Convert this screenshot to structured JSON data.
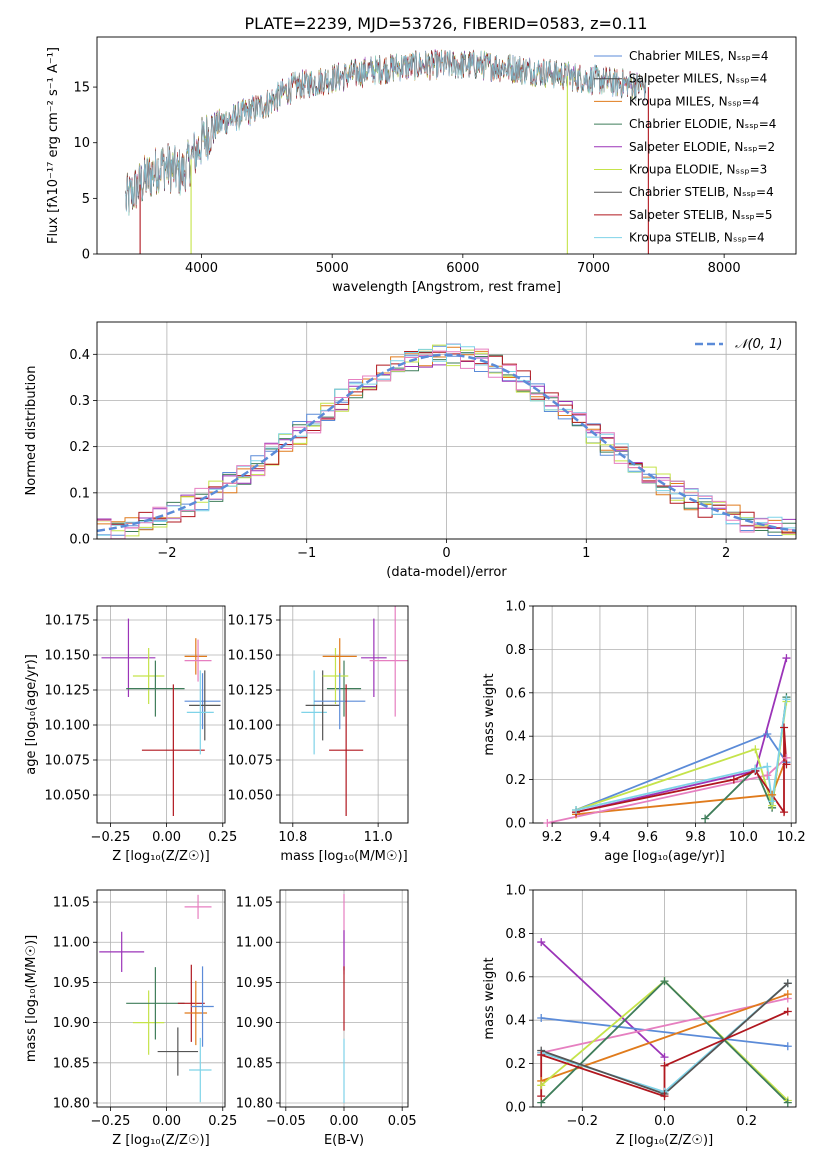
{
  "title": "PLATE=2239, MJD=53726, FIBERID=0583, z=0.11",
  "colors": {
    "Chabrier MILES": "#5b8bd8",
    "Salpeter MILES": "#4a4a4a",
    "Kroupa MILES": "#e07b1c",
    "Chabrier ELODIE": "#3f7d5a",
    "Salpeter ELODIE": "#9b34b8",
    "Kroupa ELODIE": "#c5e34a",
    "Chabrier STELIB": "#555555",
    "Salpeter STELIB": "#b0171f",
    "Kroupa STELIB": "#7fd3e8",
    "extra_pink": "#e67fc0",
    "gaussian": "#5b8bd8"
  },
  "chart_data": [
    {
      "type": "line",
      "panel": "spectrum",
      "xlabel": "wavelength [Angstrom, rest frame]",
      "ylabel": "Flux [fλ10⁻¹⁷ erg cm⁻² s⁻¹ A⁻¹]",
      "xlim": [
        3200,
        8550
      ],
      "ylim": [
        0,
        19.5
      ],
      "xticks": [
        "4000",
        "5000",
        "6000",
        "7000",
        "8000"
      ],
      "yticks": [
        "0",
        "5",
        "10",
        "15"
      ],
      "grid": false,
      "legend_position": "upper-right",
      "series": [
        {
          "name": "Chabrier MILES, Nₛₛₚ=4"
        },
        {
          "name": "Salpeter MILES, Nₛₛₚ=4"
        },
        {
          "name": "Kroupa MILES, Nₛₛₚ=4"
        },
        {
          "name": "Chabrier ELODIE, Nₛₛₚ=4"
        },
        {
          "name": "Salpeter ELODIE, Nₛₛₚ=2"
        },
        {
          "name": "Kroupa ELODIE, Nₛₛₚ=3"
        },
        {
          "name": "Chabrier STELIB, Nₛₛₚ=4"
        },
        {
          "name": "Salpeter STELIB, Nₛₛₚ=5"
        },
        {
          "name": "Kroupa STELIB, Nₛₛₚ=4"
        }
      ],
      "continuum": {
        "x": [
          3420,
          3550,
          3700,
          3850,
          4000,
          4100,
          4300,
          4500,
          4700,
          4900,
          5100,
          5300,
          5500,
          5700,
          5900,
          6100,
          6300,
          6500,
          6700,
          6900,
          7100,
          7300,
          7400
        ],
        "y": [
          4.8,
          6.5,
          8.0,
          7.2,
          10.0,
          11.5,
          12.5,
          13.5,
          15.0,
          15.5,
          16.0,
          16.5,
          16.8,
          17.0,
          17.0,
          17.0,
          16.8,
          16.5,
          16.2,
          15.8,
          15.5,
          15.2,
          15.0
        ]
      },
      "noise_amplitude": 1.2,
      "drops_to_zero": [
        3530,
        3920,
        6800,
        7420
      ]
    },
    {
      "type": "bar",
      "panel": "residual_histogram",
      "xlabel": "(data-model)/error",
      "ylabel": "Normed distribution",
      "xlim": [
        -2.5,
        2.5
      ],
      "ylim": [
        0,
        0.47
      ],
      "xticks": [
        "−2",
        "−1",
        "0",
        "1",
        "2"
      ],
      "yticks": [
        "0.0",
        "0.1",
        "0.2",
        "0.3",
        "0.4"
      ],
      "grid": true,
      "legend_position": "upper-right",
      "legend": [
        "𝒩(0, 1)"
      ],
      "bin_width": 0.1,
      "histogram_scatter": 0.025
    },
    {
      "type": "scatter",
      "panel": "age_vs_Z",
      "xlabel": "Z [log₁₀(Z/Z☉)]",
      "ylabel": "age  [log₁₀(age/yr)]",
      "xlim": [
        -0.31,
        0.26
      ],
      "ylim": [
        10.03,
        10.185
      ],
      "xticks": [
        "−0.25",
        "0.00",
        "0.25"
      ],
      "yticks": [
        "10.050",
        "10.075",
        "10.100",
        "10.125",
        "10.150",
        "10.175"
      ],
      "grid": true,
      "points": [
        {
          "series": "Salpeter ELODIE",
          "x": -0.17,
          "xerr": 0.12,
          "y": 10.148,
          "yerr": 0.028
        },
        {
          "series": "Kroupa ELODIE",
          "x": -0.08,
          "xerr": 0.07,
          "y": 10.135,
          "yerr": 0.02
        },
        {
          "series": "Chabrier ELODIE",
          "x": -0.05,
          "xerr": 0.13,
          "y": 10.126,
          "yerr": 0.02
        },
        {
          "series": "Salpeter STELIB",
          "x": 0.03,
          "xerr": 0.14,
          "y": 10.082,
          "yerr": 0.047
        },
        {
          "series": "Kroupa MILES",
          "x": 0.13,
          "xerr": 0.05,
          "y": 10.149,
          "yerr": 0.013
        },
        {
          "series": "extra_pink",
          "x": 0.14,
          "xerr": 0.06,
          "y": 10.146,
          "yerr": 0.015
        },
        {
          "series": "Chabrier MILES",
          "x": 0.16,
          "xerr": 0.08,
          "y": 10.117,
          "yerr": 0.02
        },
        {
          "series": "Chabrier STELIB",
          "x": 0.17,
          "xerr": 0.07,
          "y": 10.114,
          "yerr": 0.025
        },
        {
          "series": "Kroupa STELIB",
          "x": 0.15,
          "xerr": 0.06,
          "y": 10.109,
          "yerr": 0.03
        }
      ]
    },
    {
      "type": "scatter",
      "panel": "age_vs_mass",
      "xlabel": "mass [log₁₀(M/M☉)]",
      "ylabel": "",
      "xlim": [
        10.77,
        11.07
      ],
      "ylim": [
        10.03,
        10.185
      ],
      "xticks": [
        "10.8",
        "11.0"
      ],
      "yticks": [
        "10.050",
        "10.075",
        "10.100",
        "10.125",
        "10.150",
        "10.175"
      ],
      "grid": true,
      "points": [
        {
          "series": "Kroupa STELIB",
          "x": 10.85,
          "xerr": 0.03,
          "y": 10.109,
          "yerr": 0.03
        },
        {
          "series": "Chabrier STELIB",
          "x": 10.87,
          "xerr": 0.04,
          "y": 10.114,
          "yerr": 0.025
        },
        {
          "series": "Chabrier ELODIE",
          "x": 10.92,
          "xerr": 0.04,
          "y": 10.126,
          "yerr": 0.02
        },
        {
          "series": "Kroupa ELODIE",
          "x": 10.9,
          "xerr": 0.03,
          "y": 10.135,
          "yerr": 0.02
        },
        {
          "series": "Kroupa MILES",
          "x": 10.91,
          "xerr": 0.04,
          "y": 10.149,
          "yerr": 0.013
        },
        {
          "series": "Chabrier MILES",
          "x": 10.91,
          "xerr": 0.06,
          "y": 10.117,
          "yerr": 0.02
        },
        {
          "series": "Salpeter STELIB",
          "x": 10.925,
          "xerr": 0.04,
          "y": 10.082,
          "yerr": 0.047
        },
        {
          "series": "Salpeter ELODIE",
          "x": 10.99,
          "xerr": 0.03,
          "y": 10.148,
          "yerr": 0.028
        },
        {
          "series": "extra_pink",
          "x": 11.04,
          "xerr": 0.06,
          "y": 10.146,
          "yerr": 0.04
        }
      ]
    },
    {
      "type": "line",
      "panel": "mass_weight_vs_age",
      "xlabel": "age  [log₁₀(age/yr)]",
      "ylabel": "mass weight",
      "xlim": [
        9.12,
        10.22
      ],
      "ylim": [
        0,
        1
      ],
      "xticks": [
        "9.2",
        "9.4",
        "9.6",
        "9.8",
        "10.0",
        "10.2"
      ],
      "yticks": [
        "0.0",
        "0.2",
        "0.4",
        "0.6",
        "0.8",
        "1.0"
      ],
      "grid": true,
      "series": [
        {
          "series": "Chabrier MILES",
          "x": [
            9.3,
            10.1,
            10.18
          ],
          "y": [
            0.06,
            0.41,
            0.28
          ]
        },
        {
          "series": "Kroupa MILES",
          "x": [
            9.3,
            10.12,
            10.18
          ],
          "y": [
            0.04,
            0.13,
            0.3
          ]
        },
        {
          "series": "extra_pink",
          "x": [
            9.18,
            10.1,
            10.18
          ],
          "y": [
            0.0,
            0.22,
            0.3
          ]
        },
        {
          "series": "Chabrier ELODIE",
          "x": [
            9.84,
            10.05,
            10.12,
            10.18
          ],
          "y": [
            0.02,
            0.25,
            0.07,
            0.58
          ]
        },
        {
          "series": "Salpeter ELODIE",
          "x": [
            9.3,
            10.05,
            10.18
          ],
          "y": [
            0.05,
            0.24,
            0.76
          ]
        },
        {
          "series": "Kroupa ELODIE",
          "x": [
            9.3,
            10.05,
            10.12,
            10.18
          ],
          "y": [
            0.06,
            0.34,
            0.08,
            0.56
          ]
        },
        {
          "series": "Salpeter STELIB",
          "x": [
            9.3,
            9.96,
            10.05,
            10.17,
            10.17,
            10.18
          ],
          "y": [
            0.05,
            0.2,
            0.24,
            0.05,
            0.44,
            0.27
          ]
        },
        {
          "series": "Kroupa STELIB",
          "x": [
            9.3,
            10.05,
            10.1,
            10.12,
            10.18
          ],
          "y": [
            0.06,
            0.25,
            0.26,
            0.1,
            0.57
          ]
        }
      ]
    },
    {
      "type": "scatter",
      "panel": "mass_vs_Z",
      "xlabel": "Z [log₁₀(Z/Z☉)]",
      "ylabel": "mass [log₁₀(M/M☉)]",
      "xlim": [
        -0.31,
        0.26
      ],
      "ylim": [
        10.795,
        11.065
      ],
      "xticks": [
        "−0.25",
        "0.00",
        "0.25"
      ],
      "yticks": [
        "10.80",
        "10.85",
        "10.90",
        "10.95",
        "11.00",
        "11.05"
      ],
      "grid": true,
      "points": [
        {
          "series": "Salpeter ELODIE",
          "x": -0.2,
          "xerr": 0.1,
          "y": 10.988,
          "yerr": 0.025
        },
        {
          "series": "Kroupa ELODIE",
          "x": -0.08,
          "xerr": 0.07,
          "y": 10.9,
          "yerr": 0.04
        },
        {
          "series": "Chabrier ELODIE",
          "x": -0.05,
          "xerr": 0.13,
          "y": 10.924,
          "yerr": 0.045
        },
        {
          "series": "Chabrier STELIB",
          "x": 0.05,
          "xerr": 0.09,
          "y": 10.864,
          "yerr": 0.03
        },
        {
          "series": "Salpeter STELIB",
          "x": 0.11,
          "xerr": 0.06,
          "y": 10.924,
          "yerr": 0.048
        },
        {
          "series": "Kroupa MILES",
          "x": 0.13,
          "xerr": 0.05,
          "y": 10.912,
          "yerr": 0.04
        },
        {
          "series": "extra_pink",
          "x": 0.14,
          "xerr": 0.06,
          "y": 11.044,
          "yerr": 0.015
        },
        {
          "series": "Kroupa STELIB",
          "x": 0.15,
          "xerr": 0.05,
          "y": 10.841,
          "yerr": 0.04
        },
        {
          "series": "Chabrier MILES",
          "x": 0.16,
          "xerr": 0.05,
          "y": 10.92,
          "yerr": 0.05
        }
      ]
    },
    {
      "type": "scatter",
      "panel": "mass_vs_EBV",
      "xlabel": "E(B-V)",
      "ylabel": "",
      "xlim": [
        -0.055,
        0.055
      ],
      "ylim": [
        10.795,
        11.065
      ],
      "xticks": [
        "−0.05",
        "0.00",
        "0.05"
      ],
      "yticks": [
        "10.80",
        "10.85",
        "10.90",
        "10.95",
        "11.00",
        "11.05"
      ],
      "grid": true,
      "points": [
        {
          "series": "extra_pink",
          "x": 0.0,
          "xerr": 0.0,
          "y": 11.01,
          "yerr": 0.05
        },
        {
          "series": "Salpeter ELODIE",
          "x": 0.0,
          "xerr": 0.0,
          "y": 10.99,
          "yerr": 0.025
        },
        {
          "series": "Salpeter STELIB",
          "x": 0.0,
          "xerr": 0.0,
          "y": 10.93,
          "yerr": 0.04
        },
        {
          "series": "Kroupa STELIB",
          "x": 0.0,
          "xerr": 0.0,
          "y": 10.84,
          "yerr": 0.04
        }
      ]
    },
    {
      "type": "line",
      "panel": "mass_weight_vs_Z",
      "xlabel": "Z [log₁₀(Z/Z☉)]",
      "ylabel": "mass weight",
      "xlim": [
        -0.32,
        0.32
      ],
      "ylim": [
        0,
        1
      ],
      "xticks": [
        "−0.2",
        "0.0",
        "0.2"
      ],
      "yticks": [
        "0.0",
        "0.2",
        "0.4",
        "0.6",
        "0.8",
        "1.0"
      ],
      "grid": true,
      "series": [
        {
          "series": "Salpeter ELODIE",
          "x": [
            -0.3,
            0.0
          ],
          "y": [
            0.76,
            0.23
          ]
        },
        {
          "series": "Chabrier MILES",
          "x": [
            -0.3,
            0.3
          ],
          "y": [
            0.41,
            0.28
          ]
        },
        {
          "series": "extra_pink",
          "x": [
            -0.3,
            0.3
          ],
          "y": [
            0.25,
            0.5
          ]
        },
        {
          "series": "Kroupa MILES",
          "x": [
            -0.3,
            0.3
          ],
          "y": [
            0.12,
            0.52
          ]
        },
        {
          "series": "Kroupa ELODIE",
          "x": [
            -0.3,
            0.0,
            0.3
          ],
          "y": [
            0.1,
            0.58,
            0.03
          ]
        },
        {
          "series": "Chabrier ELODIE",
          "x": [
            -0.3,
            0.0,
            0.3
          ],
          "y": [
            0.02,
            0.58,
            0.02
          ]
        },
        {
          "series": "Kroupa STELIB",
          "x": [
            -0.3,
            0.0,
            0.3
          ],
          "y": [
            0.25,
            0.07,
            0.57
          ]
        },
        {
          "series": "Chabrier STELIB",
          "x": [
            -0.3,
            0.0,
            0.3
          ],
          "y": [
            0.26,
            0.06,
            0.57
          ]
        },
        {
          "series": "Salpeter STELIB",
          "x": [
            -0.3,
            -0.3,
            0.0,
            0.0,
            0.3
          ],
          "y": [
            0.05,
            0.24,
            0.05,
            0.19,
            0.44
          ]
        }
      ]
    }
  ]
}
